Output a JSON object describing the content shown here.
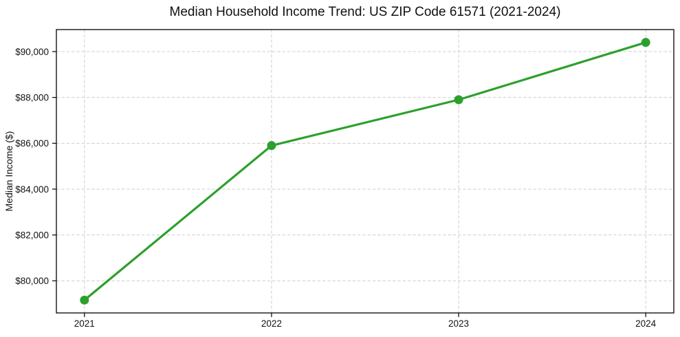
{
  "chart_data": {
    "type": "line",
    "title": "Median Household Income Trend: US ZIP Code 61571 (2021-2024)",
    "xlabel": "",
    "ylabel": "Median Income ($)",
    "x": [
      2021,
      2022,
      2023,
      2024
    ],
    "series": [
      {
        "name": "Median Household Income",
        "values": [
          79160,
          85900,
          87900,
          90400
        ]
      }
    ],
    "xticks": [
      2021,
      2022,
      2023,
      2024
    ],
    "xtick_labels": [
      "2021",
      "2022",
      "2023",
      "2024"
    ],
    "yticks": [
      80000,
      82000,
      84000,
      86000,
      88000,
      90000
    ],
    "ytick_labels": [
      "$80,000",
      "$82,000",
      "$84,000",
      "$86,000",
      "$88,000",
      "$90,000"
    ],
    "xlim": [
      2020.85,
      2024.15
    ],
    "ylim": [
      78600,
      90960
    ],
    "grid": true,
    "legend": "none",
    "colors": {
      "line": "#2ca02c",
      "marker": "#2ca02c",
      "grid": "#cdcdcd",
      "axis": "#000000",
      "background": "#ffffff"
    }
  }
}
